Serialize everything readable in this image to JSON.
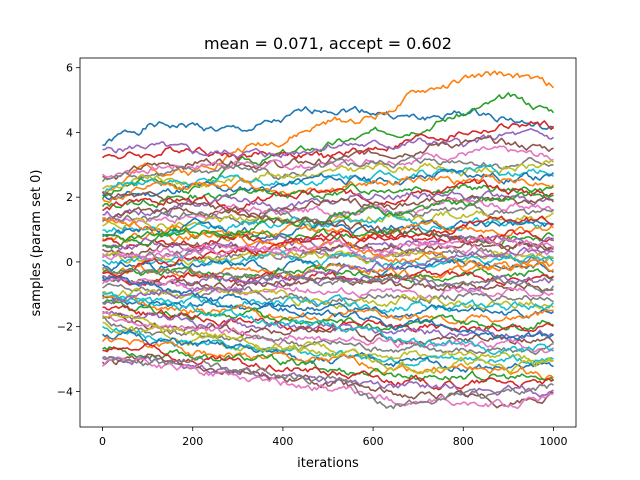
{
  "chart_data": {
    "type": "line",
    "title": "mean = 0.071, accept = 0.602",
    "xlabel": "iterations",
    "ylabel": "samples (param set 0)",
    "xlim": [
      -50,
      1050
    ],
    "ylim": [
      -5.1,
      6.3
    ],
    "x_ticks": [
      0,
      200,
      400,
      600,
      800,
      1000
    ],
    "x_tick_labels": [
      "0",
      "200",
      "400",
      "600",
      "800",
      "1000"
    ],
    "y_ticks": [
      -4,
      -2,
      0,
      2,
      4,
      6
    ],
    "y_tick_labels": [
      "−4",
      "−2",
      "0",
      "2",
      "4",
      "6"
    ],
    "grid": false,
    "legend": "none",
    "colors": [
      "#1f77b4",
      "#ff7f0e",
      "#2ca02c",
      "#d62728",
      "#9467bd",
      "#8c564b",
      "#e377c2",
      "#7f7f7f",
      "#bcbd22",
      "#17becf"
    ],
    "x_range": [
      0,
      1000
    ],
    "series": [
      {
        "values": [
          3.6,
          4.2,
          4.2,
          4.0,
          4.3,
          4.8,
          4.7,
          4.4,
          4.6,
          4.5,
          4.0
        ]
      },
      {
        "values": [
          2.2,
          2.9,
          2.8,
          3.5,
          3.8,
          4.3,
          4.5,
          5.2,
          5.6,
          5.8,
          5.4
        ]
      },
      {
        "values": [
          2.0,
          2.5,
          2.3,
          3.0,
          3.3,
          3.6,
          3.9,
          4.3,
          4.6,
          5.0,
          4.7
        ]
      },
      {
        "values": [
          3.3,
          3.3,
          3.6,
          3.3,
          3.4,
          3.2,
          3.5,
          3.8,
          4.0,
          4.2,
          4.2
        ]
      },
      {
        "values": [
          3.4,
          3.6,
          3.3,
          3.4,
          3.3,
          3.7,
          3.6,
          3.7,
          3.6,
          3.9,
          3.8
        ]
      },
      {
        "values": [
          2.6,
          2.9,
          3.1,
          3.2,
          3.0,
          3.1,
          3.3,
          3.6,
          3.7,
          3.6,
          3.5
        ]
      },
      {
        "values": [
          2.7,
          2.9,
          3.0,
          3.1,
          2.9,
          3.0,
          3.2,
          3.3,
          3.4,
          3.3,
          3.2
        ]
      },
      {
        "values": [
          2.5,
          2.8,
          2.7,
          2.9,
          2.7,
          2.8,
          3.0,
          3.1,
          3.2,
          3.0,
          3.1
        ]
      },
      {
        "values": [
          2.3,
          2.5,
          2.4,
          2.6,
          2.8,
          2.7,
          2.9,
          3.0,
          2.8,
          2.9,
          3.0
        ]
      },
      {
        "values": [
          2.2,
          2.6,
          2.4,
          2.5,
          2.5,
          2.6,
          2.7,
          2.8,
          2.9,
          2.7,
          2.8
        ]
      },
      {
        "values": [
          2.0,
          2.1,
          2.3,
          2.2,
          2.4,
          2.6,
          2.5,
          2.6,
          2.8,
          2.6,
          2.6
        ]
      },
      {
        "values": [
          1.9,
          2.2,
          2.3,
          2.5,
          2.2,
          2.3,
          2.4,
          2.6,
          2.5,
          2.6,
          2.5
        ]
      },
      {
        "values": [
          1.7,
          1.9,
          2.0,
          2.2,
          2.0,
          2.1,
          2.3,
          2.4,
          2.3,
          2.2,
          2.3
        ]
      },
      {
        "values": [
          1.6,
          1.9,
          1.9,
          1.7,
          2.0,
          2.1,
          2.0,
          2.2,
          2.3,
          2.2,
          2.1
        ]
      },
      {
        "values": [
          1.5,
          1.6,
          1.8,
          1.9,
          1.7,
          1.8,
          2.0,
          2.1,
          2.0,
          2.0,
          2.0
        ]
      },
      {
        "values": [
          1.4,
          1.5,
          1.6,
          1.5,
          1.7,
          1.9,
          1.8,
          1.8,
          2.0,
          1.9,
          1.8
        ]
      },
      {
        "values": [
          1.3,
          1.4,
          1.4,
          1.6,
          1.5,
          1.6,
          1.7,
          1.6,
          1.8,
          1.7,
          1.7
        ]
      },
      {
        "values": [
          1.2,
          1.3,
          1.5,
          1.3,
          1.4,
          1.5,
          1.6,
          1.5,
          1.6,
          1.6,
          1.5
        ]
      },
      {
        "values": [
          1.1,
          1.2,
          1.2,
          1.3,
          1.3,
          1.2,
          1.4,
          1.4,
          1.5,
          1.4,
          1.4
        ]
      },
      {
        "values": [
          1.0,
          1.1,
          1.0,
          1.1,
          1.2,
          1.1,
          1.3,
          1.2,
          1.3,
          1.3,
          1.2
        ]
      },
      {
        "values": [
          0.9,
          0.9,
          1.1,
          1.0,
          1.0,
          1.1,
          1.0,
          1.2,
          1.1,
          1.2,
          1.1
        ]
      },
      {
        "values": [
          0.8,
          0.9,
          0.8,
          0.9,
          0.9,
          1.0,
          0.9,
          1.0,
          1.1,
          1.0,
          1.0
        ]
      },
      {
        "values": [
          0.7,
          0.7,
          0.9,
          0.7,
          0.8,
          0.8,
          0.9,
          0.9,
          0.8,
          0.9,
          0.8
        ]
      },
      {
        "values": [
          0.6,
          0.6,
          0.6,
          0.7,
          0.6,
          0.7,
          0.7,
          0.8,
          0.7,
          0.8,
          0.7
        ]
      },
      {
        "values": [
          0.5,
          0.6,
          0.5,
          0.5,
          0.6,
          0.5,
          0.6,
          0.6,
          0.7,
          0.6,
          0.6
        ]
      },
      {
        "values": [
          0.4,
          0.4,
          0.5,
          0.4,
          0.4,
          0.5,
          0.4,
          0.5,
          0.5,
          0.5,
          0.4
        ]
      },
      {
        "values": [
          0.3,
          0.3,
          0.3,
          0.4,
          0.3,
          0.3,
          0.4,
          0.3,
          0.4,
          0.3,
          0.3
        ]
      },
      {
        "values": [
          0.2,
          0.2,
          0.3,
          0.2,
          0.2,
          0.3,
          0.2,
          0.2,
          0.3,
          0.2,
          0.2
        ]
      },
      {
        "values": [
          0.1,
          0.1,
          0.1,
          0.2,
          0.1,
          0.1,
          0.1,
          0.2,
          0.1,
          0.1,
          0.1
        ]
      },
      {
        "values": [
          0.0,
          0.0,
          0.0,
          0.0,
          0.1,
          0.0,
          0.0,
          0.0,
          0.0,
          0.1,
          0.0
        ]
      },
      {
        "values": [
          -0.1,
          -0.1,
          -0.2,
          -0.1,
          -0.1,
          -0.1,
          -0.2,
          -0.1,
          -0.1,
          -0.1,
          -0.1
        ]
      },
      {
        "values": [
          -0.2,
          -0.3,
          -0.2,
          -0.2,
          -0.3,
          -0.2,
          -0.2,
          -0.3,
          -0.2,
          -0.2,
          -0.2
        ]
      },
      {
        "values": [
          -0.3,
          -0.3,
          -0.4,
          -0.4,
          -0.3,
          -0.4,
          -0.3,
          -0.4,
          -0.4,
          -0.3,
          -0.3
        ]
      },
      {
        "values": [
          -0.4,
          -0.5,
          -0.4,
          -0.5,
          -0.5,
          -0.4,
          -0.5,
          -0.5,
          -0.4,
          -0.5,
          -0.5
        ]
      },
      {
        "values": [
          -0.5,
          -0.6,
          -0.6,
          -0.5,
          -0.6,
          -0.7,
          -0.6,
          -0.6,
          -0.7,
          -0.6,
          -0.6
        ]
      },
      {
        "values": [
          -0.6,
          -0.6,
          -0.7,
          -0.8,
          -0.7,
          -0.7,
          -0.8,
          -0.7,
          -0.8,
          -0.8,
          -0.7
        ]
      },
      {
        "values": [
          -0.7,
          -0.8,
          -0.8,
          -0.9,
          -0.9,
          -0.8,
          -0.9,
          -1.0,
          -0.9,
          -0.9,
          -0.9
        ]
      },
      {
        "values": [
          -0.8,
          -0.9,
          -1.0,
          -0.9,
          -1.0,
          -1.1,
          -1.0,
          -1.1,
          -1.1,
          -1.0,
          -1.0
        ]
      },
      {
        "values": [
          -0.9,
          -1.0,
          -1.1,
          -1.1,
          -1.1,
          -1.2,
          -1.2,
          -1.1,
          -1.2,
          -1.3,
          -1.2
        ]
      },
      {
        "values": [
          -1.0,
          -1.1,
          -1.2,
          -1.3,
          -1.2,
          -1.3,
          -1.4,
          -1.3,
          -1.4,
          -1.4,
          -1.3
        ]
      },
      {
        "values": [
          -1.1,
          -1.3,
          -1.3,
          -1.4,
          -1.5,
          -1.4,
          -1.5,
          -1.6,
          -1.5,
          -1.6,
          -1.5
        ]
      },
      {
        "values": [
          -1.2,
          -1.4,
          -1.5,
          -1.5,
          -1.6,
          -1.7,
          -1.6,
          -1.7,
          -1.8,
          -1.7,
          -1.6
        ]
      },
      {
        "values": [
          -1.3,
          -1.5,
          -1.6,
          -1.7,
          -1.7,
          -1.8,
          -1.9,
          -1.8,
          -1.9,
          -1.9,
          -1.8
        ]
      },
      {
        "values": [
          -1.4,
          -1.6,
          -1.7,
          -1.8,
          -1.9,
          -1.9,
          -2.0,
          -2.1,
          -2.0,
          -2.1,
          -2.0
        ]
      },
      {
        "values": [
          -1.5,
          -1.7,
          -1.9,
          -1.9,
          -2.0,
          -2.1,
          -2.2,
          -2.1,
          -2.3,
          -2.2,
          -2.2
        ]
      },
      {
        "values": [
          -1.6,
          -1.9,
          -2.0,
          -2.1,
          -2.2,
          -2.2,
          -2.3,
          -2.4,
          -2.3,
          -2.4,
          -2.4
        ]
      },
      {
        "values": [
          -1.7,
          -2.0,
          -2.1,
          -2.2,
          -2.3,
          -2.4,
          -2.4,
          -2.5,
          -2.6,
          -2.5,
          -2.6
        ]
      },
      {
        "values": [
          -1.8,
          -2.1,
          -2.2,
          -2.3,
          -2.5,
          -2.5,
          -2.6,
          -2.7,
          -2.7,
          -2.8,
          -2.7
        ]
      },
      {
        "values": [
          -1.9,
          -2.2,
          -2.4,
          -2.5,
          -2.6,
          -2.7,
          -2.8,
          -2.8,
          -2.9,
          -2.9,
          -3.0
        ]
      },
      {
        "values": [
          -2.0,
          -2.3,
          -2.5,
          -2.6,
          -2.7,
          -2.8,
          -2.9,
          -3.0,
          -3.1,
          -3.0,
          -3.1
        ]
      },
      {
        "values": [
          -2.2,
          -2.4,
          -2.6,
          -2.7,
          -2.9,
          -3.0,
          -3.1,
          -3.1,
          -3.2,
          -3.3,
          -3.2
        ]
      },
      {
        "values": [
          -2.4,
          -2.6,
          -2.7,
          -2.9,
          -3.0,
          -3.1,
          -3.2,
          -3.3,
          -3.3,
          -3.4,
          -3.5
        ]
      },
      {
        "values": [
          -2.6,
          -2.8,
          -2.9,
          -3.0,
          -3.1,
          -3.3,
          -3.4,
          -3.5,
          -3.5,
          -3.6,
          -3.7
        ]
      },
      {
        "values": [
          -2.8,
          -2.7,
          -3.0,
          -3.2,
          -3.3,
          -3.4,
          -3.6,
          -3.7,
          -3.8,
          -3.7,
          -3.8
        ]
      },
      {
        "values": [
          -3.0,
          -3.0,
          -3.2,
          -3.3,
          -3.5,
          -3.6,
          -3.7,
          -3.9,
          -3.9,
          -4.0,
          -4.0
        ]
      },
      {
        "values": [
          -3.1,
          -3.0,
          -3.3,
          -3.2,
          -3.6,
          -3.8,
          -4.0,
          -4.1,
          -4.2,
          -4.3,
          -4.2
        ]
      },
      {
        "values": [
          -3.2,
          -3.1,
          -3.4,
          -3.5,
          -3.7,
          -3.9,
          -4.2,
          -4.3,
          -4.4,
          -4.5,
          -4.1
        ]
      },
      {
        "values": [
          -2.9,
          -3.2,
          -3.1,
          -3.4,
          -3.5,
          -3.6,
          -4.3,
          -4.4,
          -4.0,
          -4.2,
          -3.9
        ]
      },
      {
        "values": [
          -1.6,
          -1.9,
          -2.2,
          -2.3,
          -2.6,
          -2.8,
          -3.1,
          -3.2,
          -3.1,
          -3.3,
          -3.0
        ]
      },
      {
        "values": [
          -1.0,
          -1.2,
          -1.4,
          -1.7,
          -1.9,
          -2.0,
          -2.2,
          -2.5,
          -2.6,
          -2.7,
          -2.6
        ]
      },
      {
        "values": [
          -0.5,
          -0.8,
          -1.1,
          -1.2,
          -1.4,
          -1.6,
          -1.8,
          -2.0,
          -2.1,
          -2.3,
          -2.4
        ]
      },
      {
        "values": [
          1.3,
          1.1,
          0.9,
          0.8,
          0.6,
          0.5,
          0.3,
          0.2,
          0.0,
          -0.1,
          -0.2
        ]
      },
      {
        "values": [
          0.5,
          0.7,
          0.9,
          1.1,
          1.2,
          1.4,
          1.5,
          1.6,
          1.8,
          1.9,
          2.0
        ]
      },
      {
        "values": [
          -0.3,
          -0.1,
          0.2,
          0.4,
          0.5,
          0.7,
          0.9,
          1.0,
          1.1,
          1.3,
          1.3
        ]
      },
      {
        "values": [
          -1.2,
          -1.0,
          -0.8,
          -0.6,
          -0.4,
          -0.3,
          -0.1,
          0.0,
          0.2,
          0.3,
          0.4
        ]
      },
      {
        "values": [
          2.1,
          1.9,
          1.7,
          1.5,
          1.3,
          1.2,
          1.0,
          0.9,
          0.7,
          0.6,
          0.5
        ]
      },
      {
        "values": [
          0.1,
          0.3,
          0.2,
          0.4,
          0.3,
          0.5,
          0.4,
          0.6,
          0.5,
          0.7,
          0.6
        ]
      },
      {
        "values": [
          -0.2,
          -0.4,
          -0.3,
          -0.5,
          -0.4,
          -0.6,
          -0.5,
          -0.7,
          -0.6,
          -0.8,
          -0.7
        ]
      }
    ]
  }
}
